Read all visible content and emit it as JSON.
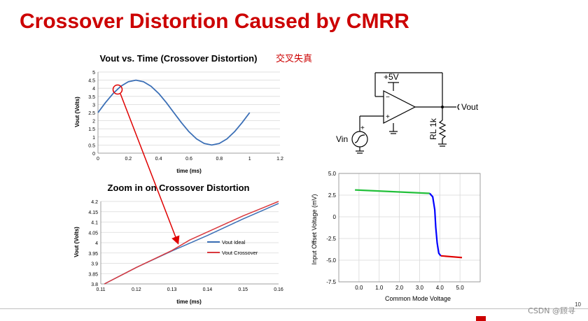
{
  "title": "Crossover Distortion Caused by CMRR",
  "note_cn": "交叉失真",
  "watermark": "CSDN @顾寻",
  "page_number": "10",
  "colors": {
    "title": "#cc0000",
    "ideal": "#3b6fb6",
    "crossover": "#d9393e",
    "arrow": "#e00000",
    "green": "#22c03a",
    "blue": "#0000ff",
    "red": "#e00000"
  },
  "schematic": {
    "supply_label": "+5V",
    "output_label": "Vout",
    "input_label": "Vin",
    "load_label": "RL 1k",
    "minus_sign": "−",
    "plus_sign": "+",
    "src_plus": "+"
  },
  "chart_data": [
    {
      "type": "line",
      "title": "Vout vs. Time (Crossover Distortion)",
      "xlabel": "time (ms)",
      "ylabel": "Vout (Volts)",
      "xlim": [
        0,
        1.2
      ],
      "ylim": [
        0,
        5
      ],
      "xticks": [
        "0",
        "0.2",
        "0.4",
        "0.6",
        "0.8",
        "1",
        "1.2"
      ],
      "yticks": [
        "0",
        "0.5",
        "1",
        "1.5",
        "2",
        "2.5",
        "3",
        "3.5",
        "4",
        "4.5",
        "5"
      ],
      "series": [
        {
          "x": [
            0,
            0.05,
            0.1,
            0.15,
            0.2,
            0.25,
            0.3,
            0.35,
            0.4,
            0.45,
            0.5,
            0.55,
            0.6,
            0.65,
            0.7,
            0.75,
            0.8,
            0.85,
            0.9,
            0.95,
            1.0
          ],
          "y": [
            2.5,
            3.12,
            3.68,
            4.12,
            4.4,
            4.5,
            4.4,
            4.12,
            3.68,
            3.12,
            2.5,
            1.88,
            1.32,
            0.88,
            0.6,
            0.5,
            0.6,
            0.88,
            1.32,
            1.88,
            2.5
          ]
        }
      ],
      "grid": "horizontal"
    },
    {
      "type": "line",
      "title": "Zoom in on Crossover Distortion",
      "xlabel": "time (ms)",
      "ylabel": "Vout (Volts)",
      "xlim": [
        0.11,
        0.16
      ],
      "ylim": [
        3.8,
        4.2
      ],
      "xticks": [
        "0.11",
        "0.12",
        "0.13",
        "0.14",
        "0.15",
        "0.16"
      ],
      "yticks": [
        "3.8",
        "3.85",
        "3.9",
        "3.95",
        "4",
        "4.05",
        "4.1",
        "4.15",
        "4.2"
      ],
      "legend": "right",
      "series": [
        {
          "name": "Vout Ideal",
          "x": [
            0.111,
            0.12,
            0.13,
            0.14,
            0.15,
            0.16
          ],
          "y": [
            3.8,
            3.88,
            3.96,
            4.035,
            4.115,
            4.19
          ]
        },
        {
          "name": "Vout Crossover",
          "x": [
            0.111,
            0.12,
            0.13,
            0.135,
            0.14,
            0.15,
            0.16
          ],
          "y": [
            3.8,
            3.88,
            3.962,
            4.013,
            4.052,
            4.13,
            4.2
          ]
        }
      ],
      "grid": "horizontal"
    },
    {
      "type": "line",
      "xlabel": "Common Mode Voltage",
      "ylabel": "Input Offset Voltage (mV)",
      "xlim": [
        -1,
        6
      ],
      "ylim": [
        -7.5,
        5
      ],
      "xticks": [
        "0.0",
        "1.0",
        "2.0",
        "3.0",
        "4.0",
        "5.0"
      ],
      "yticks": [
        "5.0",
        "2.5",
        "0",
        "-2.5",
        "-5.0",
        "-7.5"
      ],
      "series": [
        {
          "x": [
            -0.2,
            3.5
          ],
          "y": [
            3.1,
            2.7
          ],
          "color": "#22c03a"
        },
        {
          "x": [
            3.5,
            3.65,
            3.75,
            3.8,
            3.87,
            3.95,
            4.05
          ],
          "y": [
            2.7,
            2.3,
            0.8,
            -1.2,
            -3.0,
            -4.2,
            -4.5
          ],
          "color": "#0000ff"
        },
        {
          "x": [
            4.05,
            5.1
          ],
          "y": [
            -4.5,
            -4.7
          ],
          "color": "#e00000"
        }
      ],
      "grid": "both"
    }
  ]
}
